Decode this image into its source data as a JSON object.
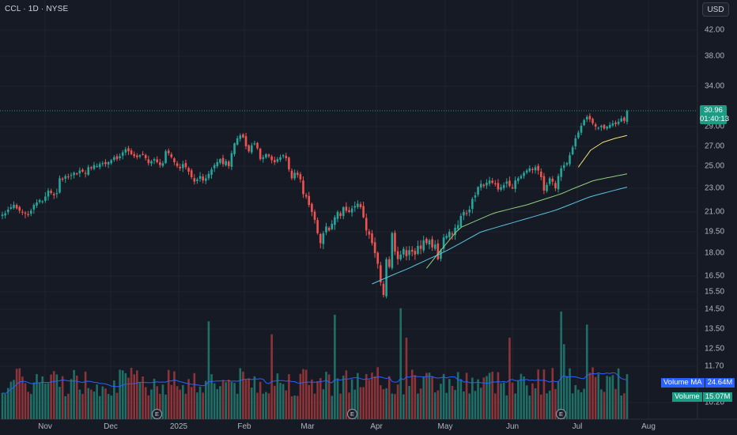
{
  "header": {
    "title": "CCL · 1D · NYSE"
  },
  "toolbar": {
    "currency": "USD"
  },
  "price_tag": {
    "price": "30.96",
    "countdown": "01:40:13"
  },
  "volume_labels": {
    "ma_label": "Volume MA",
    "ma_value": "24.64M",
    "vol_label": "Volume",
    "vol_value": "15.07M"
  },
  "earnings_marker": "E",
  "colors": {
    "background": "#161a25",
    "up": "#26a69a",
    "down": "#ef5350",
    "ma_yellow": "#f5e07a",
    "ma_green": "#8fcf7e",
    "ma_cyan": "#5bc4e0",
    "volume_ma": "#2962ff",
    "price_line": "#1c9b85"
  },
  "chart_data": {
    "type": "candlestick",
    "symbol": "CCL",
    "interval": "1D",
    "exchange": "NYSE",
    "y_axis_ticks": [
      "42.00",
      "38.00",
      "34.00",
      "29.00",
      "27.00",
      "25.00",
      "23.00",
      "21.00",
      "19.50",
      "18.00",
      "16.50",
      "15.50",
      "14.50",
      "13.50",
      "12.50",
      "11.70",
      "10.20"
    ],
    "x_axis_ticks": [
      "Nov",
      "Dec",
      "2025",
      "Feb",
      "Mar",
      "Apr",
      "May",
      "Jun",
      "Jul",
      "Aug"
    ],
    "last_price": 30.96,
    "candles_close": [
      20.8,
      20.9,
      21.2,
      21.4,
      21.6,
      21.3,
      21.1,
      21.0,
      20.9,
      20.8,
      21.1,
      21.6,
      21.8,
      22.0,
      21.9,
      22.3,
      22.8,
      22.6,
      22.4,
      22.6,
      23.9,
      23.8,
      24.1,
      24.0,
      24.2,
      24.4,
      24.3,
      24.6,
      24.5,
      24.3,
      24.9,
      24.8,
      25.1,
      25.0,
      25.2,
      25.3,
      25.2,
      25.4,
      25.6,
      25.9,
      25.7,
      26.0,
      26.4,
      26.7,
      26.5,
      26.2,
      26.0,
      25.9,
      26.1,
      26.2,
      25.8,
      25.3,
      25.5,
      25.7,
      25.4,
      25.1,
      25.3,
      26.5,
      26.3,
      25.9,
      25.4,
      25.0,
      24.8,
      25.2,
      24.9,
      24.5,
      24.0,
      23.6,
      23.8,
      24.1,
      23.7,
      23.9,
      24.3,
      24.7,
      25.1,
      25.4,
      25.7,
      25.2,
      25.5,
      25.0,
      26.3,
      27.3,
      27.8,
      28.1,
      27.9,
      27.0,
      26.5,
      27.1,
      27.3,
      26.8,
      25.7,
      25.9,
      26.2,
      26.0,
      25.6,
      25.4,
      25.7,
      25.9,
      26.1,
      25.8,
      24.7,
      23.9,
      24.4,
      24.2,
      23.8,
      22.5,
      22.3,
      21.6,
      21.0,
      20.4,
      19.4,
      18.7,
      19.4,
      19.9,
      19.6,
      20.1,
      20.6,
      21.0,
      20.7,
      21.4,
      21.1,
      21.0,
      21.3,
      21.5,
      21.7,
      21.4,
      20.6,
      19.6,
      19.3,
      18.7,
      18.0,
      17.3,
      16.1,
      15.3,
      17.6,
      17.1,
      19.4,
      18.1,
      17.6,
      17.9,
      18.3,
      17.8,
      18.2,
      18.1,
      17.9,
      18.5,
      18.3,
      18.9,
      18.7,
      18.9,
      18.4,
      18.6,
      17.6,
      18.2,
      19.1,
      19.2,
      19.5,
      19.3,
      19.8,
      20.0,
      20.7,
      21.0,
      20.9,
      21.2,
      22.1,
      22.4,
      23.1,
      23.4,
      23.2,
      23.5,
      23.7,
      23.5,
      23.4,
      22.9,
      23.1,
      23.3,
      23.6,
      23.2,
      23.0,
      23.7,
      23.9,
      24.1,
      24.4,
      24.6,
      24.8,
      24.7,
      24.9,
      24.6,
      24.0,
      22.8,
      23.3,
      23.9,
      23.6,
      23.0,
      24.1,
      24.8,
      25.1,
      25.3,
      26.1,
      26.9,
      27.8,
      28.4,
      29.1,
      29.8,
      30.2,
      29.9,
      29.4,
      29.0,
      28.9,
      29.1,
      28.8,
      29.0,
      29.2,
      29.4,
      29.3,
      29.6,
      30.0,
      29.7,
      30.96
    ],
    "moving_averages": [
      {
        "color": "#f5e07a",
        "start_index": 201,
        "approx_values": [
          24.9,
          26.6,
          27.4,
          27.8,
          28.1
        ]
      },
      {
        "color": "#8fcf7e",
        "start_index": 148,
        "approx_values": [
          17.0,
          19.8,
          20.9,
          21.6,
          22.5,
          23.7,
          24.3
        ]
      },
      {
        "color": "#5bc4e0",
        "start_index": 129,
        "approx_values": [
          16.0,
          17.0,
          18.1,
          19.5,
          20.3,
          21.1,
          22.3,
          23.1
        ]
      }
    ],
    "volume_ma_current": "24.64M",
    "volume_current": "15.07M"
  }
}
